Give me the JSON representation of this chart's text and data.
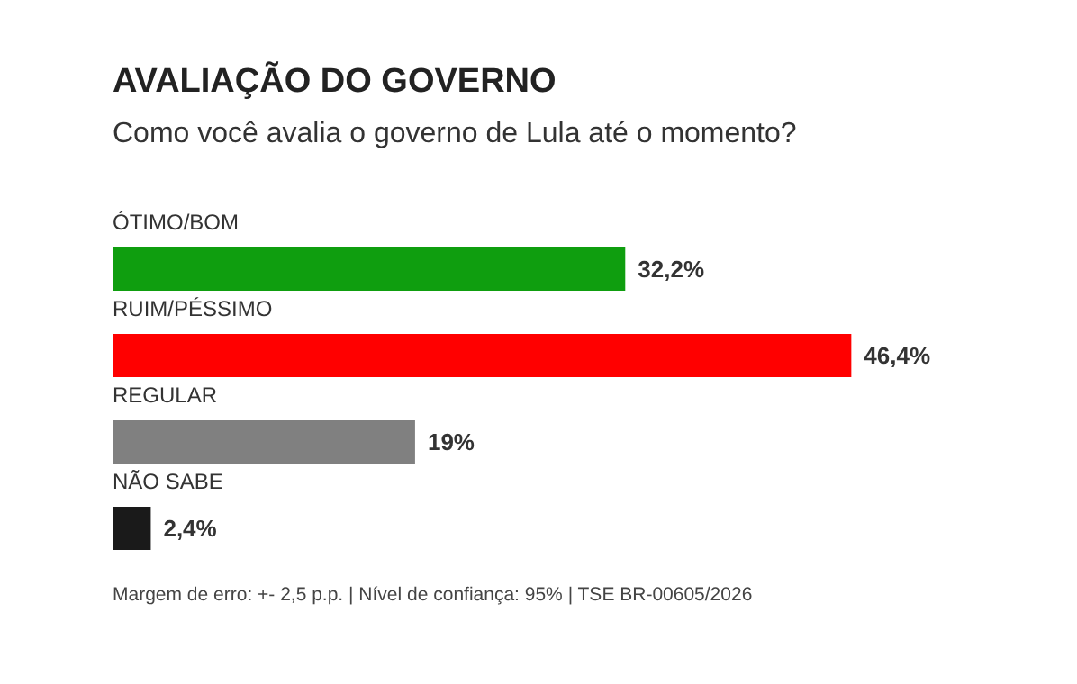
{
  "chart_data": {
    "type": "bar",
    "orientation": "horizontal",
    "title": "AVALIAÇÃO DO GOVERNO",
    "subtitle": "Como você avalia o governo de Lula até o momento?",
    "categories": [
      "ÓTIMO/BOM",
      "RUIM/PÉSSIMO",
      "REGULAR",
      "NÃO SABE"
    ],
    "values": [
      32.2,
      46.4,
      19,
      2.4
    ],
    "colors": [
      "#0f9e0f",
      "#ff0000",
      "#808080",
      "#1a1a1a"
    ],
    "value_labels": [
      "32,2%",
      "46,4%",
      "19%",
      "2,4%"
    ],
    "annotations": [
      "Margem de erro: +- 2,5 p.p. | Nível de confiança: 95% | TSE BR-00605/2026"
    ]
  }
}
